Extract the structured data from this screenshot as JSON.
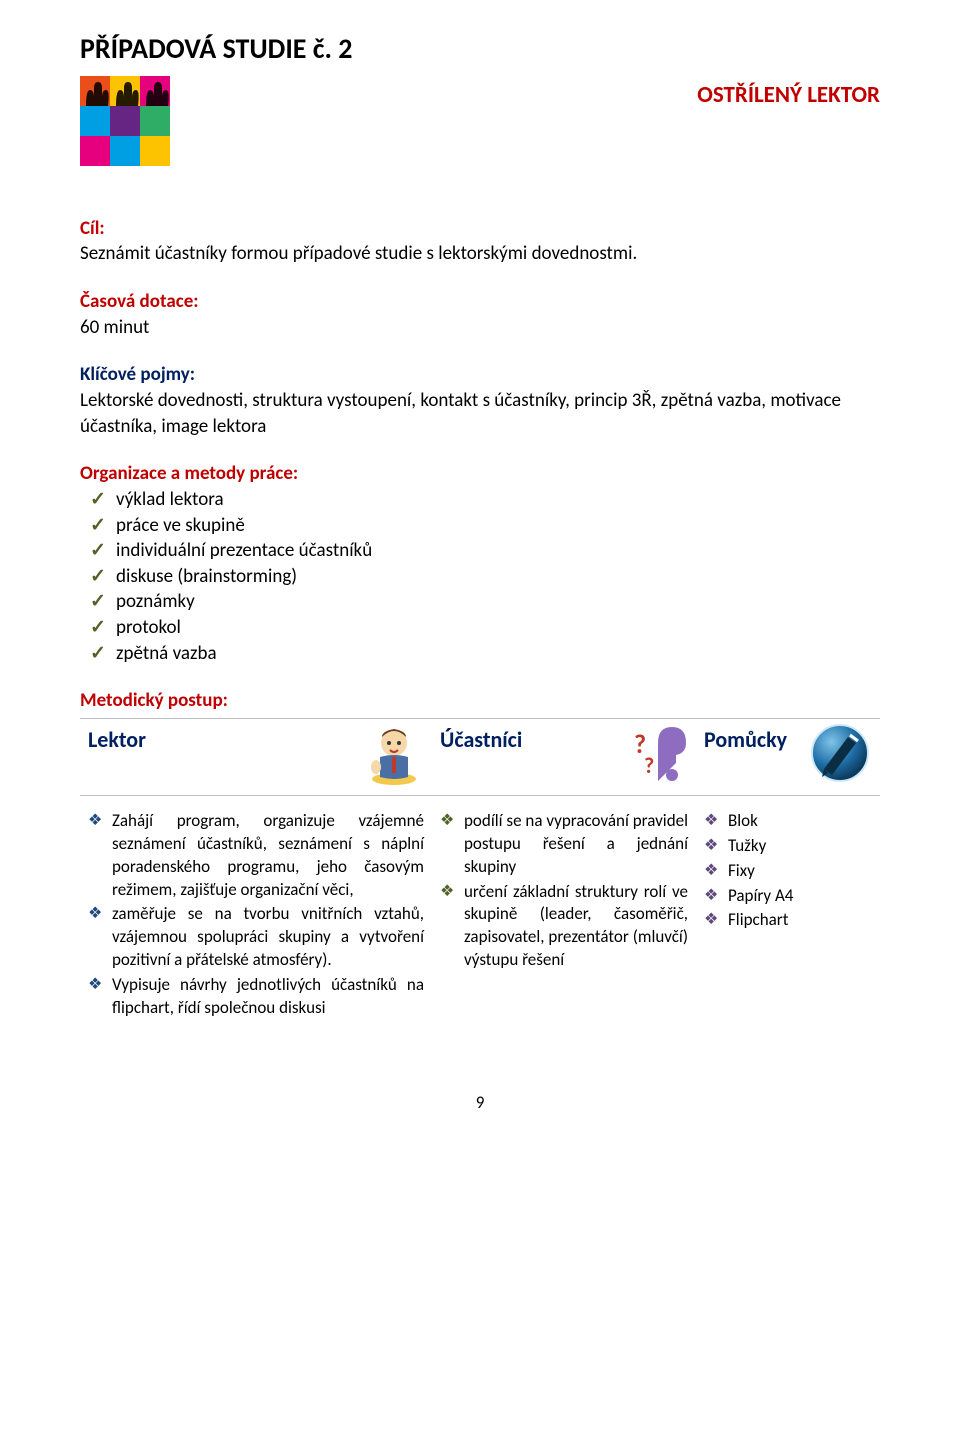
{
  "title": "PŘÍPADOVÁ STUDIE č. 2",
  "subtitle": "OSTŘÍLENÝ LEKTOR",
  "colors": {
    "title": "#000000",
    "subtitle": "#c00000",
    "cil": "#c00000",
    "casova": "#c00000",
    "klicove": "#002060",
    "organizace": "#c00000",
    "metodicky": "#c00000",
    "lektor": "#002060",
    "ucastnici": "#002060",
    "pomucky": "#002060",
    "check": "#4f6228",
    "diamond_lektor": "#1f497d",
    "diamond_ucast": "#4f6228",
    "diamond_pomucky": "#5f497a"
  },
  "cil": {
    "label": "Cíl",
    "text": "Seznámit účastníky formou případové studie s lektorskými dovednostmi."
  },
  "casova": {
    "label": "Časová dotace:",
    "text": "60 minut"
  },
  "klicove": {
    "label": "Klíčové pojmy:",
    "text": "Lektorské dovednosti, struktura vystoupení, kontakt s účastníky, princip 3Ř, zpětná vazba, motivace účastníka, image lektora"
  },
  "organizace": {
    "label": "Organizace a metody práce:",
    "items": [
      "výklad lektora",
      "práce ve skupině",
      "individuální prezentace účastníků",
      "diskuse (brainstorming)",
      "poznámky",
      "protokol",
      "zpětná vazba"
    ]
  },
  "metodicky": {
    "label": "Metodický postup:"
  },
  "table": {
    "headers": {
      "lektor": "Lektor",
      "ucastnici": "Účastníci",
      "pomucky": "Pomůcky"
    },
    "lektor_items": [
      "Zahájí program, organizuje vzájemné seznámení účastníků, seznámení s náplní poradenského programu, jeho časovým režimem, zajišťuje organizační věci,",
      "zaměřuje se na tvorbu vnitřních vztahů, vzájemnou spolupráci skupiny a vytvoření pozitivní a přátelské atmosféry).",
      "Vypisuje návrhy jednotlivých účastníků na flipchart, řídí společnou diskusi"
    ],
    "ucastnici_items": [
      "podílí se na vypracování pravidel postupu řešení a jednání skupiny",
      "určení základní struktury rolí ve skupině (leader, časoměřič, zapisovatel, prezentátor (mluvčí) výstupu řešení"
    ],
    "pomucky_items": [
      "Blok",
      "Tužky",
      "Fixy",
      "Papíry A4",
      "Flipchart"
    ]
  },
  "page_number": "9",
  "hands_colors": [
    "#e94e1b",
    "#fdc300",
    "#e6007e",
    "#009fe3",
    "#2fac66",
    "#662483"
  ]
}
